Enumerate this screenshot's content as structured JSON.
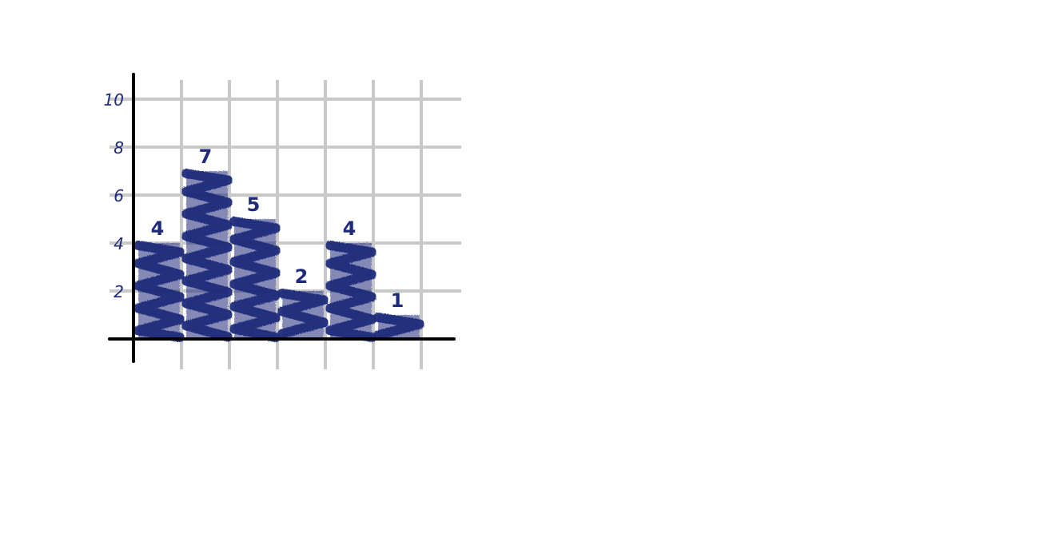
{
  "chart_data": {
    "type": "bar",
    "categories": [
      "",
      "",
      "",
      "",
      "",
      ""
    ],
    "values": [
      4,
      7,
      5,
      2,
      4,
      1
    ],
    "data_labels": [
      "4",
      "7",
      "5",
      "2",
      "4",
      "1"
    ],
    "title": "",
    "xlabel": "",
    "ylabel": "",
    "ylim": [
      0,
      10
    ],
    "yticks": [
      2,
      4,
      6,
      8,
      10
    ],
    "ytick_labels": [
      "2",
      "4",
      "6",
      "8",
      "10"
    ],
    "grid": true,
    "legend": "none",
    "style": "hand-drawn scribble fill",
    "bar_color": "#1f2a7a",
    "label_color": "#1f2a7a",
    "grid_color": "#c9c9c9",
    "axis_color": "#000000"
  }
}
